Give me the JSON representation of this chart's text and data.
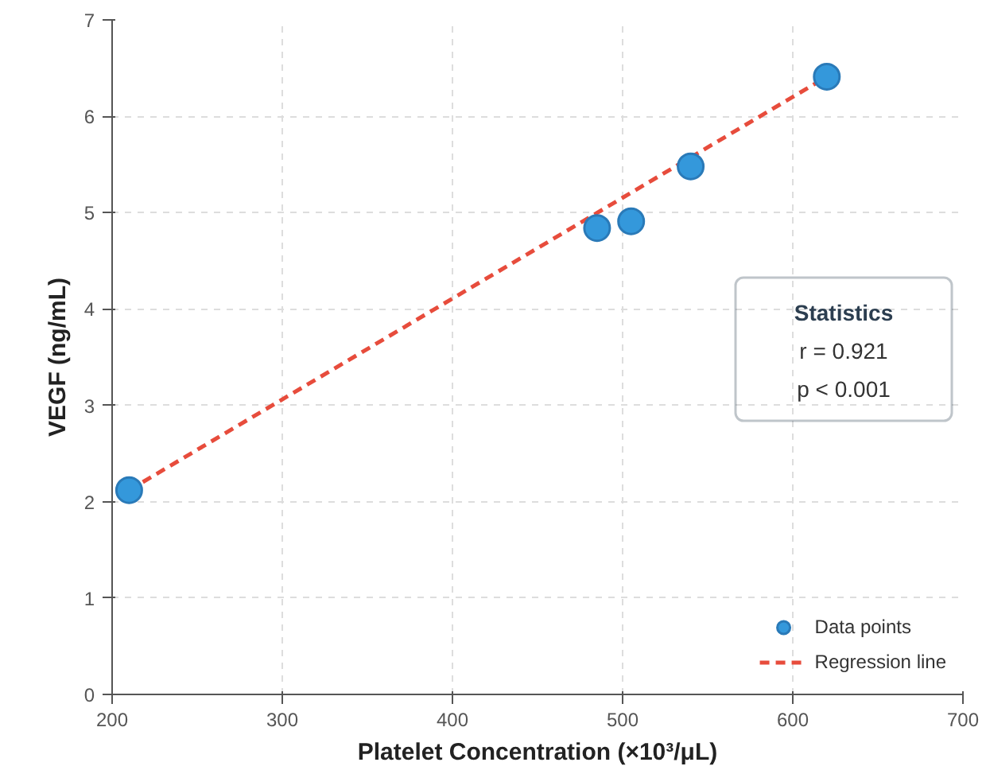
{
  "chart_data": {
    "type": "scatter",
    "xlabel": "Platelet Concentration (×10³/μL)",
    "ylabel": "VEGF (ng/mL)",
    "xlim": [
      200,
      700
    ],
    "xticks": [
      200,
      300,
      400,
      500,
      600,
      700
    ],
    "ylim": [
      0,
      7
    ],
    "yticks": [
      0,
      1,
      2,
      3,
      4,
      5,
      6,
      7
    ],
    "series": [
      {
        "name": "Data points",
        "color": "#3498db",
        "x": [
          210,
          485,
          505,
          540,
          620
        ],
        "values": [
          2.12,
          4.84,
          4.91,
          5.48,
          6.41
        ],
        "marker": "circle"
      },
      {
        "name": "Regression line",
        "type": "line",
        "color": "#e74c3c",
        "x": [
          210,
          620
        ],
        "values": [
          2.12,
          6.41
        ],
        "line_style": "dashed"
      }
    ],
    "annotations": [
      "Statistics",
      "r = 0.921",
      "p < 0.001"
    ],
    "grid": true,
    "legend": "bottom right"
  }
}
